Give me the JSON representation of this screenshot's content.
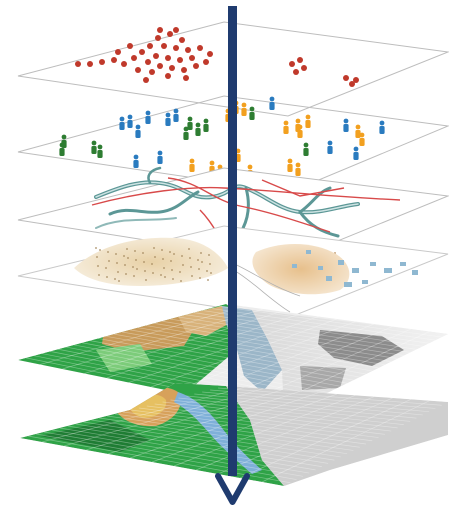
{
  "figure": {
    "layers": [
      {
        "id": "points",
        "kind": "point-cluster",
        "color": "#c0392b"
      },
      {
        "id": "people",
        "kind": "figure-icons",
        "colors": [
          "#2a7bbf",
          "#2e7d32",
          "#f2a01f"
        ]
      },
      {
        "id": "network",
        "kind": "road-river-network",
        "colors": [
          "#6aa6a6",
          "#d84a4a"
        ]
      },
      {
        "id": "density",
        "kind": "density-surface",
        "colors": [
          "#e9d9b8",
          "#b7c7d6"
        ]
      },
      {
        "id": "landcover",
        "kind": "raster-grid",
        "colors": [
          "#2fa347",
          "#c89b5b",
          "#9bb6c8",
          "#8c8c8c"
        ]
      },
      {
        "id": "terrain",
        "kind": "elevation-surface",
        "colors": [
          "#2fa347",
          "#d7a15b",
          "#7fb0d9",
          "#cfcfcf"
        ]
      }
    ],
    "arrow": {
      "color": "#1f3b6f",
      "icon": "down-arrow-icon"
    }
  }
}
